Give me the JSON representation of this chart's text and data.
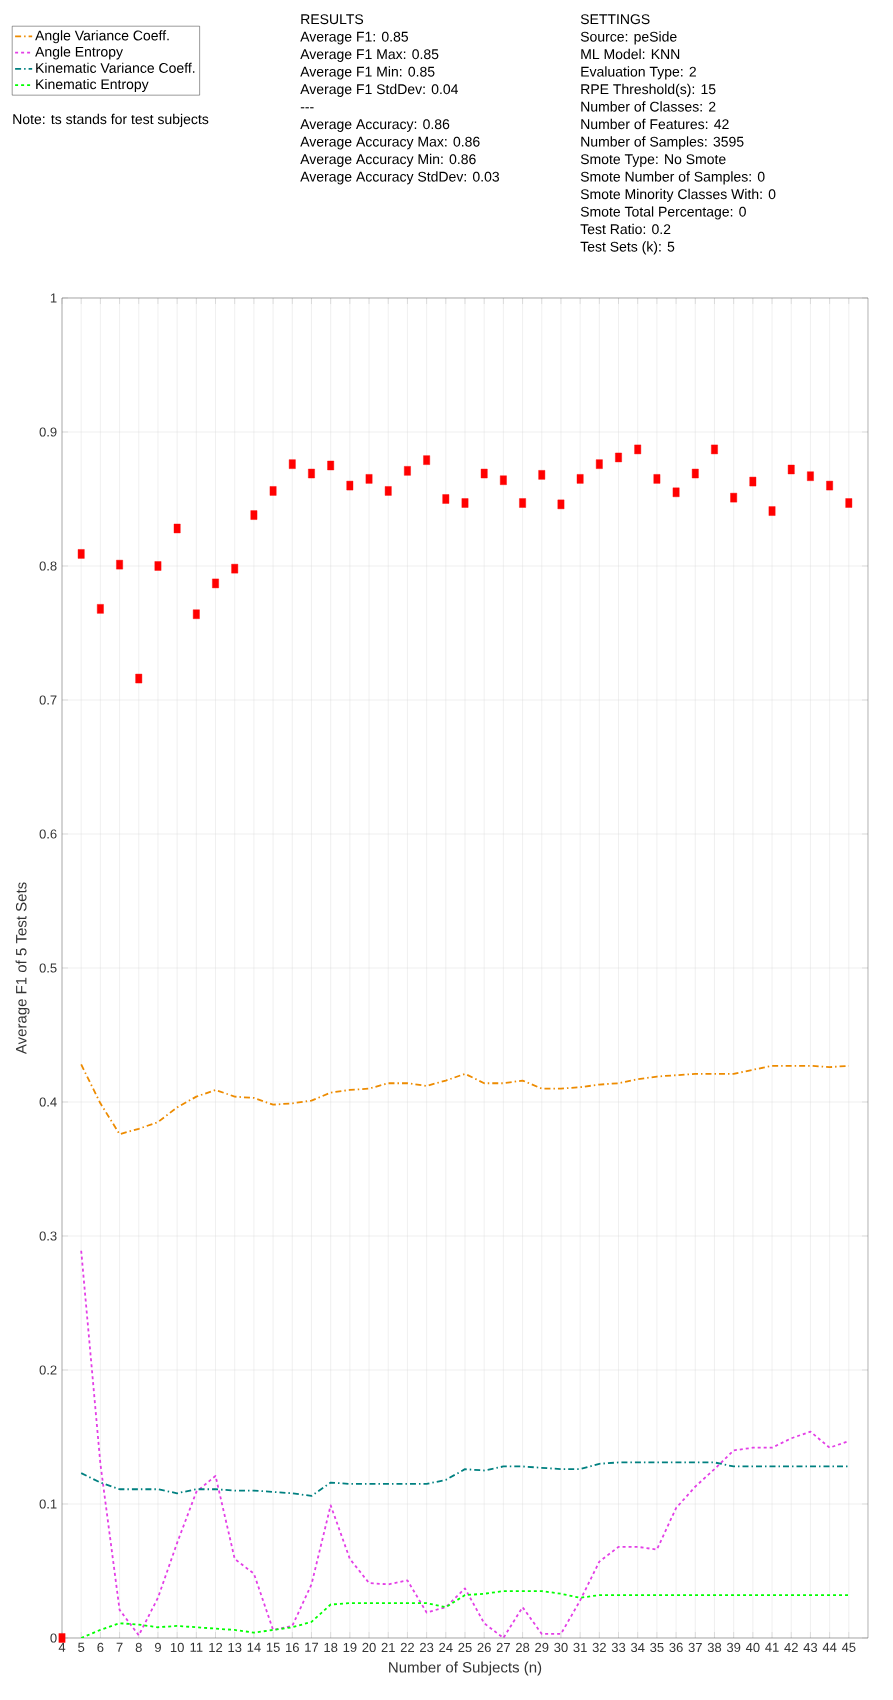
{
  "chart_data": {
    "type": "line",
    "xlabel": "Number of Subjects (n)",
    "ylabel": "Average F1 of 5 Test Sets",
    "x": [
      4,
      5,
      6,
      7,
      8,
      9,
      10,
      11,
      12,
      13,
      14,
      15,
      16,
      17,
      18,
      19,
      20,
      21,
      22,
      23,
      24,
      25,
      26,
      27,
      28,
      29,
      30,
      31,
      32,
      33,
      34,
      35,
      36,
      37,
      38,
      39,
      40,
      41,
      42,
      43,
      44,
      45
    ],
    "series": [
      {
        "name": "Angle Variance Coeff.",
        "color": "#ed8b00",
        "line_style": "dashdot",
        "values": [
          null,
          0.428,
          0.399,
          0.376,
          0.38,
          0.385,
          0.396,
          0.404,
          0.409,
          0.404,
          0.403,
          0.398,
          0.399,
          0.401,
          0.407,
          0.409,
          0.41,
          0.414,
          0.414,
          0.412,
          0.416,
          0.421,
          0.414,
          0.414,
          0.416,
          0.41,
          0.41,
          0.411,
          0.413,
          0.414,
          0.417,
          0.419,
          0.42,
          0.421,
          0.421,
          0.421,
          0.424,
          0.427,
          0.427,
          0.427,
          0.426,
          0.427
        ]
      },
      {
        "name": "Angle Entropy",
        "color": "#e33fe6",
        "line_style": "dashed",
        "values": [
          null,
          0.289,
          0.13,
          0.021,
          0.002,
          0.03,
          0.071,
          0.109,
          0.121,
          0.059,
          0.048,
          0.006,
          0.009,
          0.04,
          0.099,
          0.059,
          0.041,
          0.04,
          0.043,
          0.019,
          0.023,
          0.037,
          0.011,
          0.0,
          0.023,
          0.003,
          0.003,
          0.028,
          0.057,
          0.068,
          0.068,
          0.066,
          0.097,
          0.113,
          0.126,
          0.14,
          0.142,
          0.142,
          0.149,
          0.154,
          0.142,
          0.147
        ]
      },
      {
        "name": "Kinematic Variance Coeff.",
        "color": "#008080",
        "line_style": "dashdot",
        "values": [
          null,
          0.123,
          0.116,
          0.111,
          0.111,
          0.111,
          0.108,
          0.111,
          0.111,
          0.11,
          0.11,
          0.109,
          0.108,
          0.106,
          0.116,
          0.115,
          0.115,
          0.115,
          0.115,
          0.115,
          0.118,
          0.126,
          0.125,
          0.128,
          0.128,
          0.127,
          0.126,
          0.126,
          0.13,
          0.131,
          0.131,
          0.131,
          0.131,
          0.131,
          0.131,
          0.128,
          0.128,
          0.128,
          0.128,
          0.128,
          0.128,
          0.128
        ]
      },
      {
        "name": "Kinematic Entropy",
        "color": "#00ff00",
        "line_style": "dashed",
        "values": [
          null,
          0.0,
          0.006,
          0.011,
          0.01,
          0.008,
          0.009,
          0.008,
          0.007,
          0.006,
          0.004,
          0.006,
          0.008,
          0.012,
          0.025,
          0.026,
          0.026,
          0.026,
          0.026,
          0.026,
          0.023,
          0.032,
          0.033,
          0.035,
          0.035,
          0.035,
          0.033,
          0.03,
          0.032,
          0.032,
          0.032,
          0.032,
          0.032,
          0.032,
          0.032,
          0.032,
          0.032,
          0.032,
          0.032,
          0.032,
          0.032,
          0.032
        ]
      },
      {
        "type": "scatter",
        "color": "#ff0000",
        "marker": "square",
        "values": [
          0,
          0.809,
          0.768,
          0.801,
          0.716,
          0.8,
          0.828,
          0.764,
          0.787,
          0.798,
          0.838,
          0.856,
          0.876,
          0.869,
          0.875,
          0.86,
          0.865,
          0.856,
          0.871,
          0.879,
          0.85,
          0.847,
          0.869,
          0.864,
          0.847,
          0.868,
          0.846,
          0.865,
          0.876,
          0.881,
          0.887,
          0.865,
          0.855,
          0.869,
          0.887,
          0.851,
          0.863,
          0.841,
          0.872,
          0.867,
          0.86,
          0.847
        ]
      }
    ],
    "xlim": [
      4,
      46
    ],
    "xticks": [
      4,
      5,
      6,
      7,
      8,
      9,
      10,
      11,
      12,
      13,
      14,
      15,
      16,
      17,
      18,
      19,
      20,
      21,
      22,
      23,
      24,
      25,
      26,
      27,
      28,
      29,
      30,
      31,
      32,
      33,
      34,
      35,
      36,
      37,
      38,
      39,
      40,
      41,
      42,
      43,
      44,
      45
    ],
    "ylim": [
      0,
      1
    ],
    "yticks": [
      0,
      0.1,
      0.2,
      0.3,
      0.4,
      0.5,
      0.6,
      0.7,
      0.8,
      0.9,
      1
    ],
    "grid": true,
    "legend": "top left",
    "annotations": [
      "Note: ts stands for test subjects",
      "RESULTS",
      "Average F1: 0.85",
      "Average F1 Max: 0.85",
      "Average F1 Min: 0.85",
      "Average F1 StdDev: 0.04",
      "---",
      "Average Accuracy: 0.86",
      "Average Accuracy Max: 0.86",
      "Average Accuracy Min: 0.86",
      "Average Accuracy StdDev: 0.03",
      "SETTINGS",
      "Source: peSide",
      "ML Model: KNN",
      "Evaluation Type: 2",
      "RPE Threshold(s): 15",
      "Number of Classes: 2",
      "Number of Features: 42",
      "Number of Samples: 3595",
      "Smote Type: No Smote",
      "Smote Number of Samples: 0",
      "Smote Minority Classes With: 0",
      "Smote Total Percentage: 0",
      "Test Ratio: 0.2",
      "Test Sets (k): 5"
    ]
  }
}
